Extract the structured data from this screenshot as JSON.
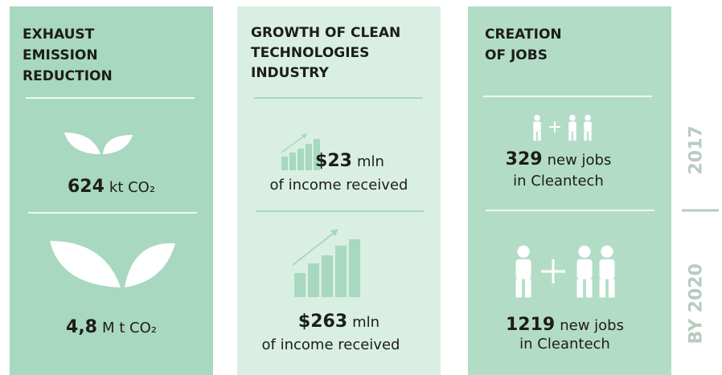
{
  "panels": [
    {
      "title": [
        "EXHAUST",
        "EMISSION",
        "REDUCTION"
      ],
      "items": [
        {
          "value": "624",
          "unit": "kt CO₂"
        },
        {
          "value": "4,8",
          "unit": "M t CO₂"
        }
      ]
    },
    {
      "title": [
        "GROWTH OF CLEAN",
        "TECHNOLOGIES",
        "INDUSTRY"
      ],
      "items": [
        {
          "value": "$23",
          "unit": "mln",
          "note": "of income received"
        },
        {
          "value": "$263",
          "unit": "mln",
          "note": "of income received"
        }
      ]
    },
    {
      "title": [
        "CREATION",
        "OF JOBS"
      ],
      "items": [
        {
          "value": "329",
          "unit": "new jobs",
          "note": "in Cleantech"
        },
        {
          "value": "1219",
          "unit": "new jobs",
          "note": "in Cleantech"
        }
      ]
    }
  ],
  "periods": [
    "2017",
    "BY 2020"
  ]
}
